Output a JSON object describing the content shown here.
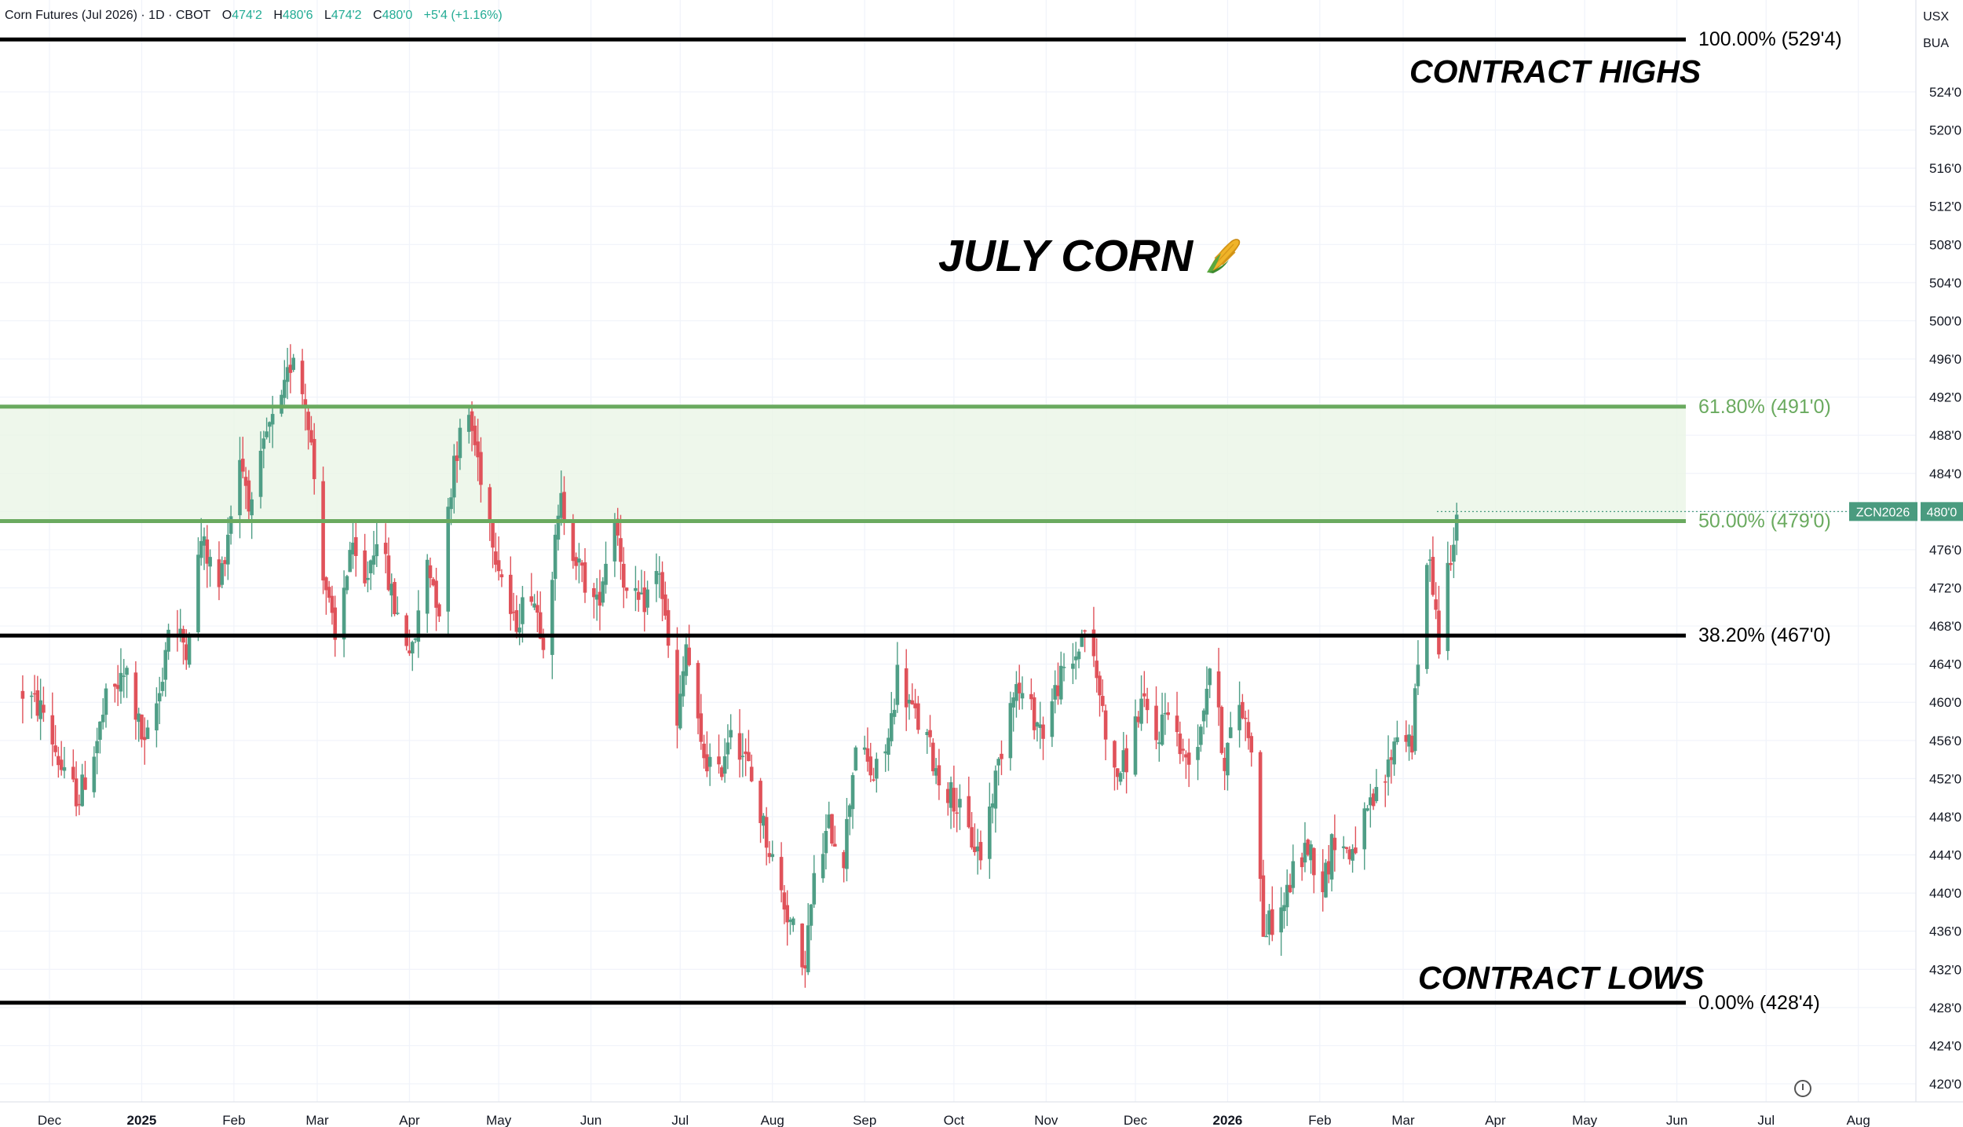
{
  "header": {
    "symbol": "Corn Futures (Jul 2026) · 1D · CBOT",
    "open_label": "O",
    "open": "474'2",
    "high_label": "H",
    "high": "480'6",
    "low_label": "L",
    "low": "474'2",
    "close_label": "C",
    "close": "480'0",
    "change": "+5'4 (+1.16%)"
  },
  "units": {
    "currency": "USX",
    "unit": "BUA"
  },
  "price_tag": {
    "symbol": "ZCN2026",
    "price": "480'0",
    "value": 480
  },
  "annotations": {
    "title": "JULY CORN",
    "title_icon": "corn-icon",
    "contract_highs": "CONTRACT HIGHS",
    "contract_lows": "CONTRACT LOWS"
  },
  "colors": {
    "up": "#4f9e86",
    "down": "#e0525a",
    "fib_green": "#6aaa5f",
    "zone_fill": "#eaf5e6",
    "level_black": "#000000",
    "tag_bg": "#4a9b7f"
  },
  "chart_data": {
    "type": "candlestick",
    "title": "",
    "y_axis": {
      "range": [
        418,
        532
      ],
      "ticks": [
        "420'0",
        "424'0",
        "428'0",
        "432'0",
        "436'0",
        "440'0",
        "444'0",
        "448'0",
        "452'0",
        "456'0",
        "460'0",
        "464'0",
        "468'0",
        "472'0",
        "476'0",
        "480'0",
        "484'0",
        "488'0",
        "492'0",
        "496'0",
        "500'0",
        "504'0",
        "508'0",
        "512'0",
        "516'0",
        "520'0",
        "524'0"
      ],
      "tick_values": [
        420,
        424,
        428,
        432,
        436,
        440,
        444,
        448,
        452,
        456,
        460,
        464,
        468,
        472,
        476,
        480,
        484,
        488,
        492,
        496,
        500,
        504,
        508,
        512,
        516,
        520,
        524
      ]
    },
    "x_axis": {
      "labels": [
        "Dec",
        "2025",
        "Feb",
        "Mar",
        "Apr",
        "May",
        "Jun",
        "Jul",
        "Aug",
        "Sep",
        "Oct",
        "Nov",
        "Dec",
        "2026",
        "Feb",
        "Mar",
        "Apr",
        "May",
        "Jun",
        "Jul",
        "Aug"
      ],
      "bold": [
        "2025",
        "2026"
      ]
    },
    "fib_levels": [
      {
        "label": "100.00% (529'4)",
        "value": 529.5,
        "color": "black"
      },
      {
        "label": "61.80% (491'0)",
        "value": 491,
        "color": "green"
      },
      {
        "label": "50.00% (479'0)",
        "value": 479,
        "color": "green"
      },
      {
        "label": "38.20% (467'0)",
        "value": 467,
        "color": "black"
      },
      {
        "label": "0.00% (428'4)",
        "value": 428.5,
        "color": "black"
      }
    ],
    "zone": {
      "from": 479,
      "to": 491
    },
    "price_path": [
      [
        "2024-11-22",
        461
      ],
      [
        "2024-11-29",
        459
      ],
      [
        "2024-12-06",
        452
      ],
      [
        "2024-12-11",
        450
      ],
      [
        "2024-12-17",
        456
      ],
      [
        "2024-12-20",
        460
      ],
      [
        "2024-12-27",
        463
      ],
      [
        "2025-01-02",
        455
      ],
      [
        "2025-01-07",
        461
      ],
      [
        "2025-01-10",
        468
      ],
      [
        "2025-01-16",
        466
      ],
      [
        "2025-01-21",
        477
      ],
      [
        "2025-01-27",
        472
      ],
      [
        "2025-02-03",
        486
      ],
      [
        "2025-02-07",
        480
      ],
      [
        "2025-02-12",
        488
      ],
      [
        "2025-02-17",
        491
      ],
      [
        "2025-02-21",
        497
      ],
      [
        "2025-02-26",
        490
      ],
      [
        "2025-03-03",
        474
      ],
      [
        "2025-03-07",
        466
      ],
      [
        "2025-03-12",
        476
      ],
      [
        "2025-03-17",
        472
      ],
      [
        "2025-03-21",
        478
      ],
      [
        "2025-03-27",
        470
      ],
      [
        "2025-04-02",
        465
      ],
      [
        "2025-04-07",
        475
      ],
      [
        "2025-04-11",
        470
      ],
      [
        "2025-04-16",
        486
      ],
      [
        "2025-04-21",
        490
      ],
      [
        "2025-04-25",
        484
      ],
      [
        "2025-04-30",
        476
      ],
      [
        "2025-05-06",
        468
      ],
      [
        "2025-05-12",
        472
      ],
      [
        "2025-05-16",
        467
      ],
      [
        "2025-05-22",
        481
      ],
      [
        "2025-05-28",
        474
      ],
      [
        "2025-06-03",
        470
      ],
      [
        "2025-06-09",
        480
      ],
      [
        "2025-06-13",
        471
      ],
      [
        "2025-06-18",
        470
      ],
      [
        "2025-06-24",
        474
      ],
      [
        "2025-06-30",
        457
      ],
      [
        "2025-07-03",
        466
      ],
      [
        "2025-07-08",
        455
      ],
      [
        "2025-07-14",
        452
      ],
      [
        "2025-07-18",
        458
      ],
      [
        "2025-07-24",
        453
      ],
      [
        "2025-07-29",
        447
      ],
      [
        "2025-08-04",
        440
      ],
      [
        "2025-08-08",
        436
      ],
      [
        "2025-08-11",
        431
      ],
      [
        "2025-08-15",
        441
      ],
      [
        "2025-08-20",
        447
      ],
      [
        "2025-08-25",
        444
      ],
      [
        "2025-08-29",
        456
      ],
      [
        "2025-09-04",
        452
      ],
      [
        "2025-09-09",
        456
      ],
      [
        "2025-09-12",
        463
      ],
      [
        "2025-09-17",
        459
      ],
      [
        "2025-09-22",
        456
      ],
      [
        "2025-09-26",
        452
      ],
      [
        "2025-10-01",
        450
      ],
      [
        "2025-10-06",
        446
      ],
      [
        "2025-10-10",
        444
      ],
      [
        "2025-10-15",
        452
      ],
      [
        "2025-10-21",
        462
      ],
      [
        "2025-10-27",
        459
      ],
      [
        "2025-10-31",
        457
      ],
      [
        "2025-11-05",
        462
      ],
      [
        "2025-11-10",
        464
      ],
      [
        "2025-11-14",
        468
      ],
      [
        "2025-11-19",
        461
      ],
      [
        "2025-11-24",
        452
      ],
      [
        "2025-11-28",
        454
      ],
      [
        "2025-12-03",
        460
      ],
      [
        "2025-12-08",
        456
      ],
      [
        "2025-12-12",
        460
      ],
      [
        "2025-12-17",
        454
      ],
      [
        "2025-12-22",
        456
      ],
      [
        "2025-12-26",
        464
      ],
      [
        "2025-12-31",
        454
      ],
      [
        "2026-01-05",
        460
      ],
      [
        "2026-01-09",
        456
      ],
      [
        "2026-01-13",
        436
      ],
      [
        "2026-01-19",
        438
      ],
      [
        "2026-01-23",
        442
      ],
      [
        "2026-01-28",
        445
      ],
      [
        "2026-02-02",
        441
      ],
      [
        "2026-02-06",
        446
      ],
      [
        "2026-02-11",
        444
      ],
      [
        "2026-02-17",
        448
      ],
      [
        "2026-02-23",
        452
      ],
      [
        "2026-02-27",
        457
      ],
      [
        "2026-03-04",
        456
      ],
      [
        "2026-03-07",
        468
      ],
      [
        "2026-03-10",
        476
      ],
      [
        "2026-03-13",
        466
      ],
      [
        "2026-03-16",
        474
      ],
      [
        "2026-03-19",
        480
      ]
    ]
  }
}
